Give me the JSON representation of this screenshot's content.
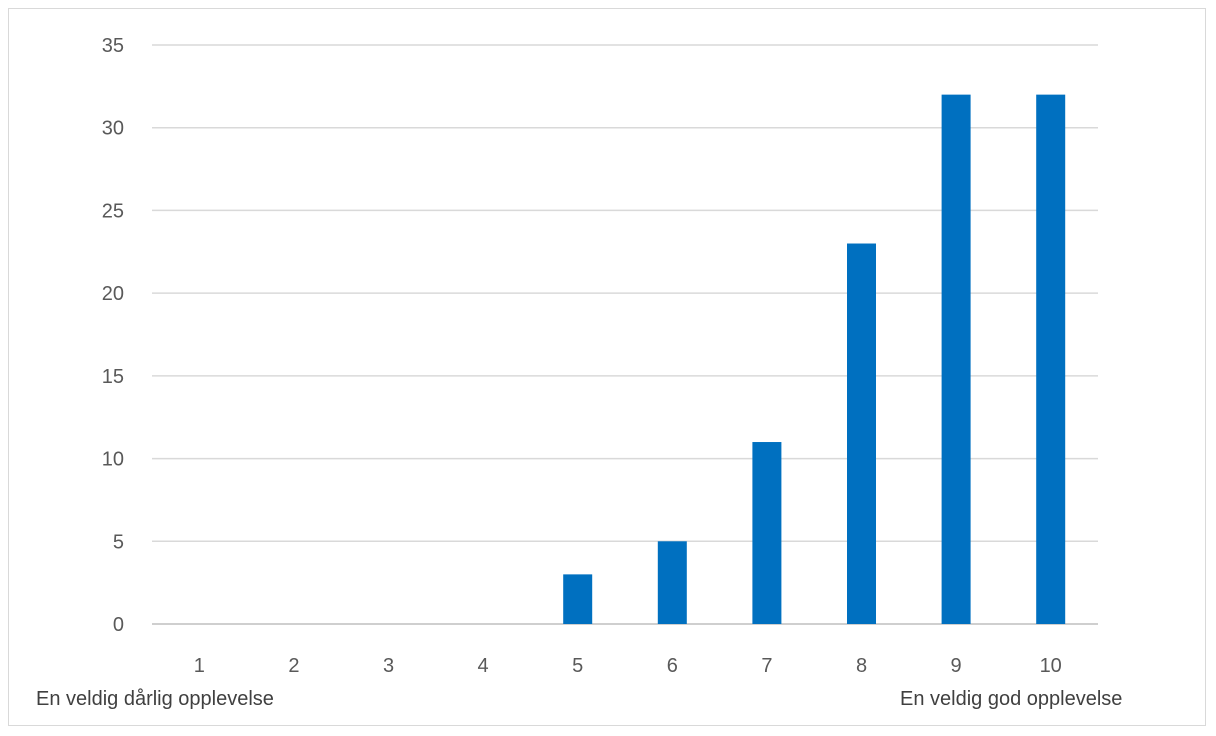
{
  "chart_data": {
    "type": "bar",
    "categories": [
      "1",
      "2",
      "3",
      "4",
      "5",
      "6",
      "7",
      "8",
      "9",
      "10"
    ],
    "values": [
      0,
      0,
      0,
      0,
      3,
      5,
      11,
      23,
      32,
      32
    ],
    "ylim": [
      0,
      35
    ],
    "yticks": [
      0,
      5,
      10,
      15,
      20,
      25,
      30,
      35
    ],
    "grid": true,
    "legend": "none",
    "bar_color": "#0070C0",
    "scale_low_label": "En veldig dårlig opplevelse",
    "scale_high_label": "En veldig god opplevelse"
  }
}
